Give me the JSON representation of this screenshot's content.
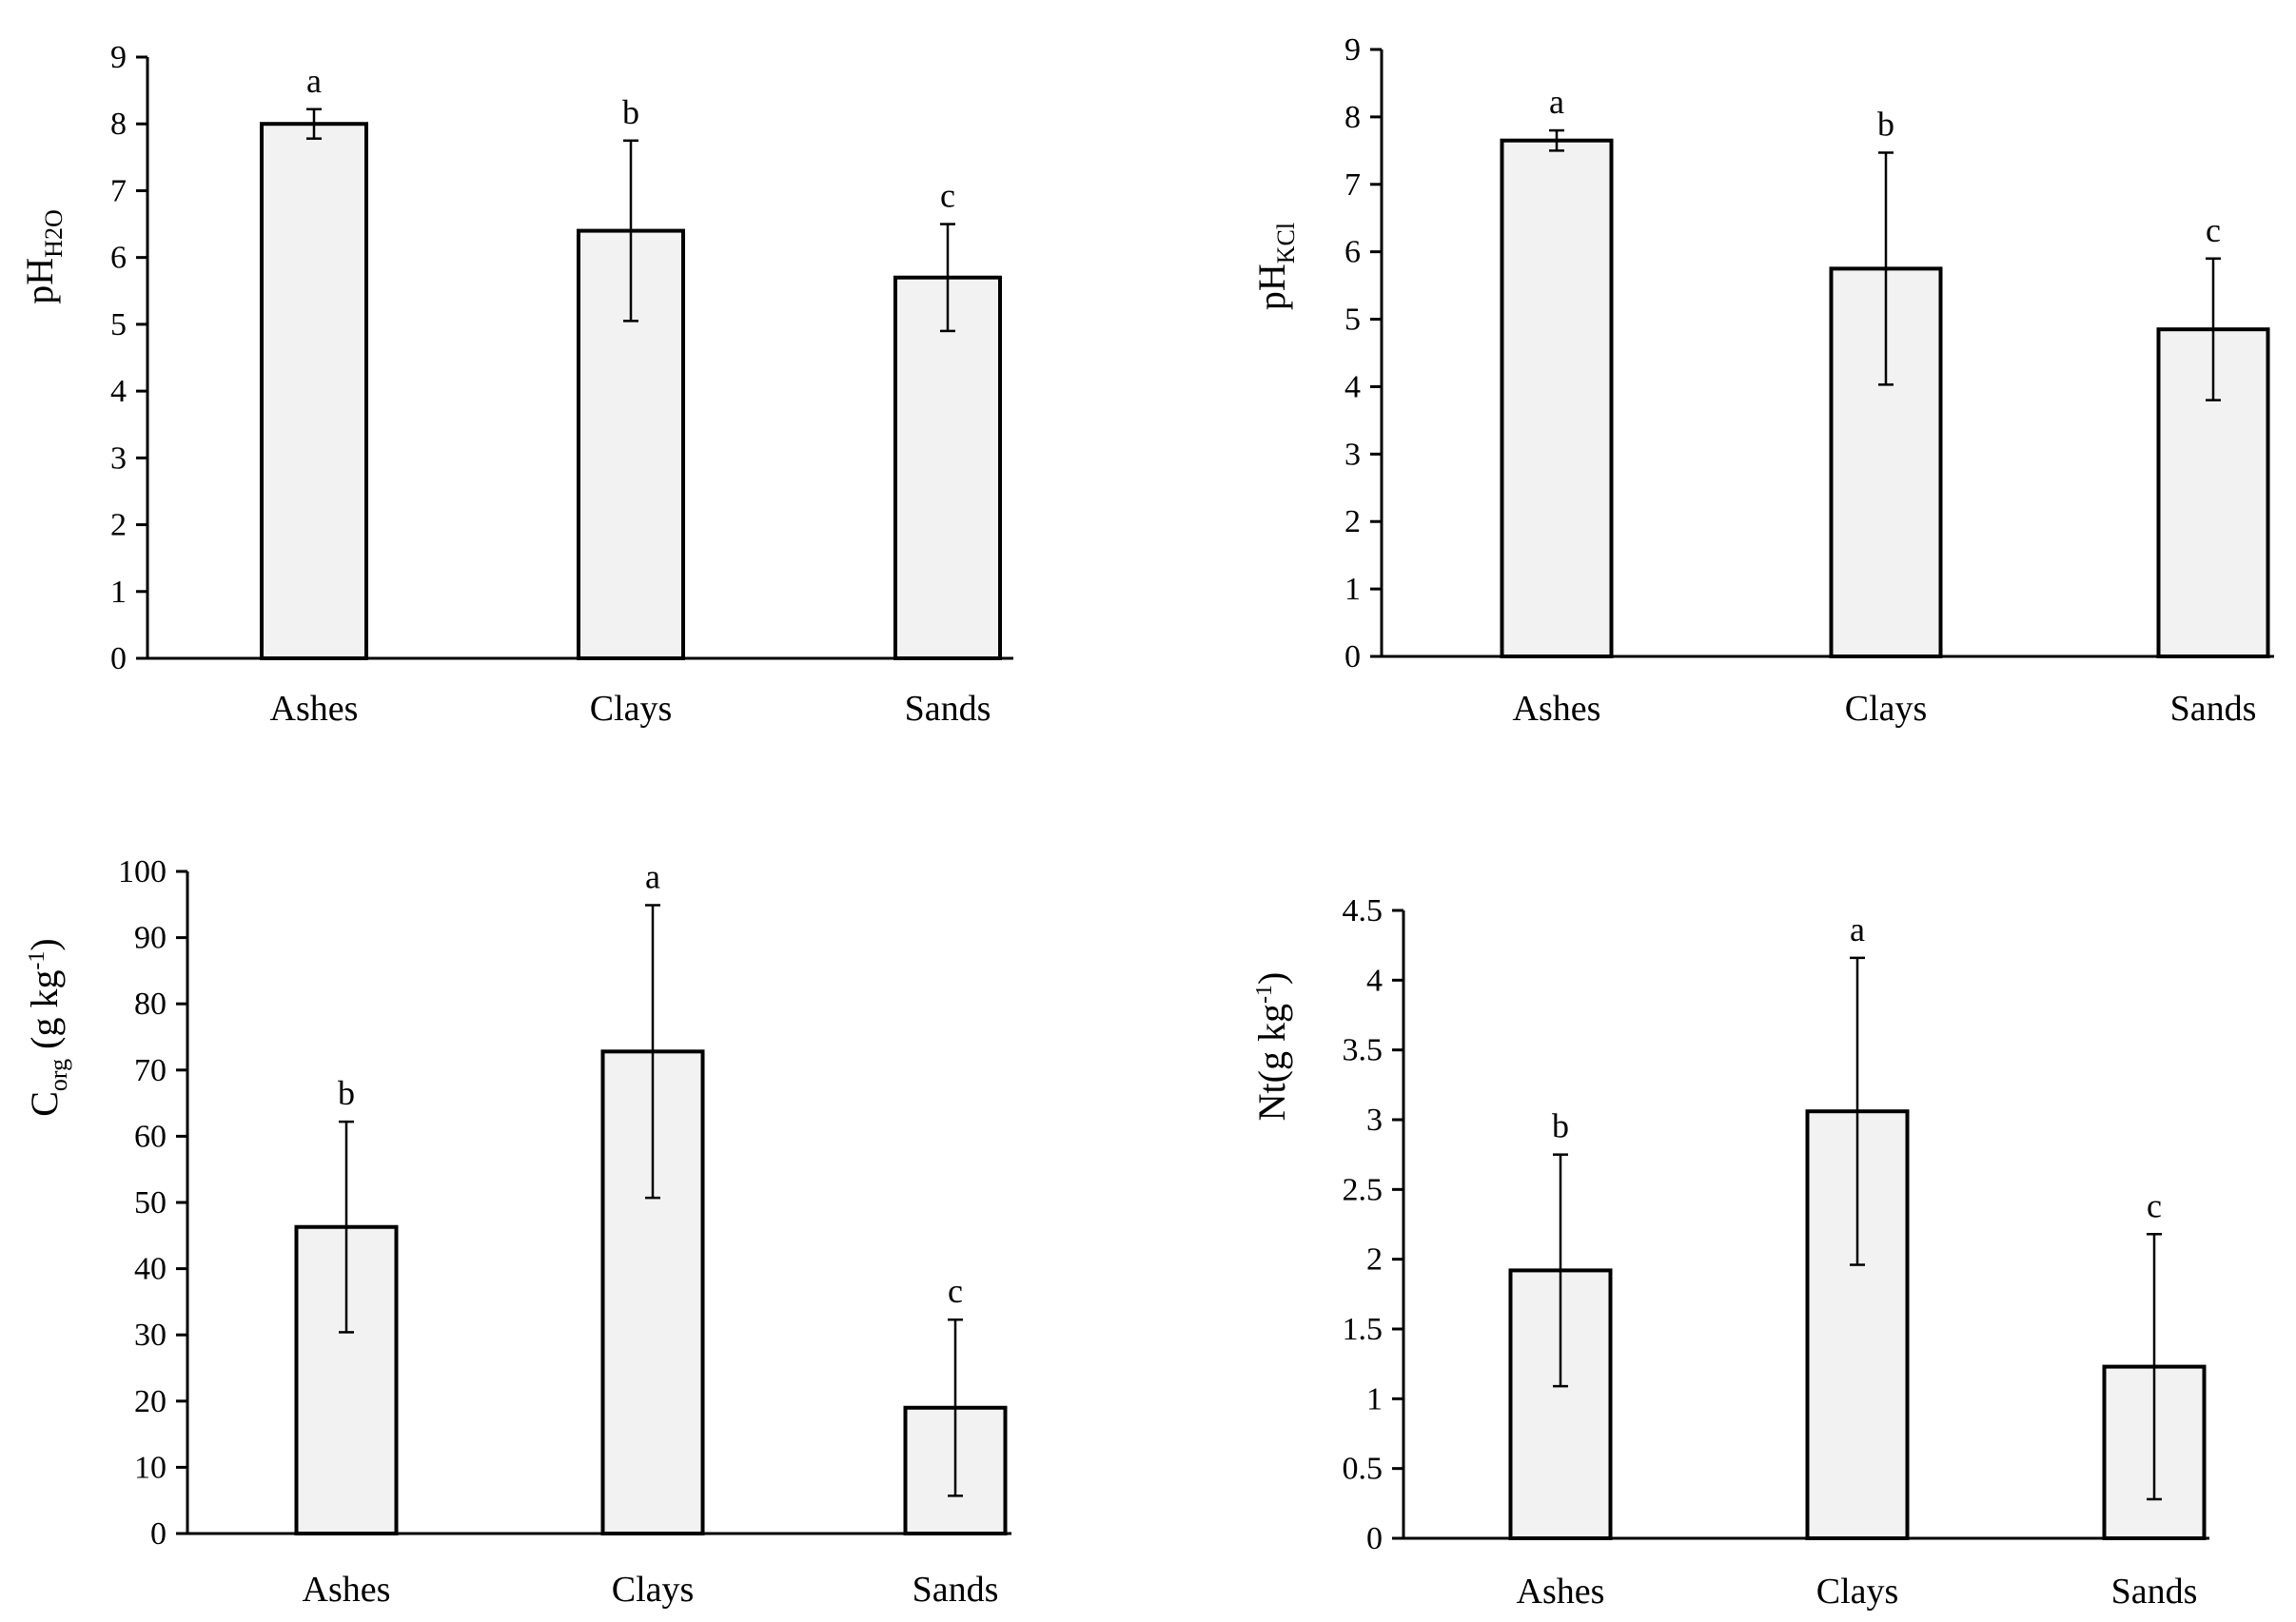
{
  "chart_data": [
    {
      "type": "bar",
      "categories": [
        "Ashes",
        "Clays",
        "Sands"
      ],
      "values": [
        8.0,
        6.4,
        5.7
      ],
      "errors": [
        0.22,
        1.35,
        0.8
      ],
      "significance": [
        "a",
        "b",
        "c"
      ],
      "ylabel": {
        "main": "pH",
        "sub": "H2O",
        "sup": "",
        "rest": ""
      },
      "ylim": [
        0,
        9
      ],
      "yticks": [
        0,
        1,
        2,
        3,
        4,
        5,
        6,
        7,
        8,
        9
      ],
      "yticklabels": [
        "0",
        "1",
        "2",
        "3",
        "4",
        "5",
        "6",
        "7",
        "8",
        "9"
      ],
      "bar_color": "#f2f2f2"
    },
    {
      "type": "bar",
      "categories": [
        "Ashes",
        "Clays",
        "Sands"
      ],
      "values": [
        7.65,
        5.75,
        4.85
      ],
      "errors": [
        0.15,
        1.72,
        1.05
      ],
      "significance": [
        "a",
        "b",
        "c"
      ],
      "ylabel": {
        "main": "pH",
        "sub": "KCl",
        "sup": "",
        "rest": ""
      },
      "ylim": [
        0,
        9
      ],
      "yticks": [
        0,
        1,
        2,
        3,
        4,
        5,
        6,
        7,
        8,
        9
      ],
      "yticklabels": [
        "0",
        "1",
        "2",
        "3",
        "4",
        "5",
        "6",
        "7",
        "8",
        "9"
      ],
      "bar_color": "#f2f2f2"
    },
    {
      "type": "bar",
      "categories": [
        "Ashes",
        "Clays",
        "Sands"
      ],
      "values": [
        46.3,
        72.8,
        19.0
      ],
      "errors": [
        15.9,
        22.1,
        13.3
      ],
      "significance": [
        "b",
        "a",
        "c"
      ],
      "ylabel": {
        "main": "C",
        "sub": "org",
        "rest_a": " (g kg",
        "sup": "-1",
        "rest": ")"
      },
      "ylim": [
        0,
        100
      ],
      "yticks": [
        0,
        10,
        20,
        30,
        40,
        50,
        60,
        70,
        80,
        90,
        100
      ],
      "yticklabels": [
        "0",
        "10",
        "20",
        "30",
        "40",
        "50",
        "60",
        "70",
        "80",
        "90",
        "100"
      ],
      "bar_color": "#f2f2f2"
    },
    {
      "type": "bar",
      "categories": [
        "Ashes",
        "Clays",
        "Sands"
      ],
      "values": [
        1.92,
        3.06,
        1.23
      ],
      "errors": [
        0.83,
        1.1,
        0.95
      ],
      "significance": [
        "b",
        "a",
        "c"
      ],
      "ylabel": {
        "main": "Nt",
        "sub": "",
        "rest_a": "(g kg",
        "sup": "-1",
        "rest": ")"
      },
      "ylim": [
        0,
        4.5
      ],
      "yticks": [
        0,
        0.5,
        1,
        1.5,
        2,
        2.5,
        3,
        3.5,
        4,
        4.5
      ],
      "yticklabels": [
        "0",
        "0.5",
        "1",
        "1.5",
        "2",
        "2.5",
        "3",
        "3.5",
        "4",
        "4.5"
      ],
      "bar_color": "#f2f2f2"
    }
  ]
}
